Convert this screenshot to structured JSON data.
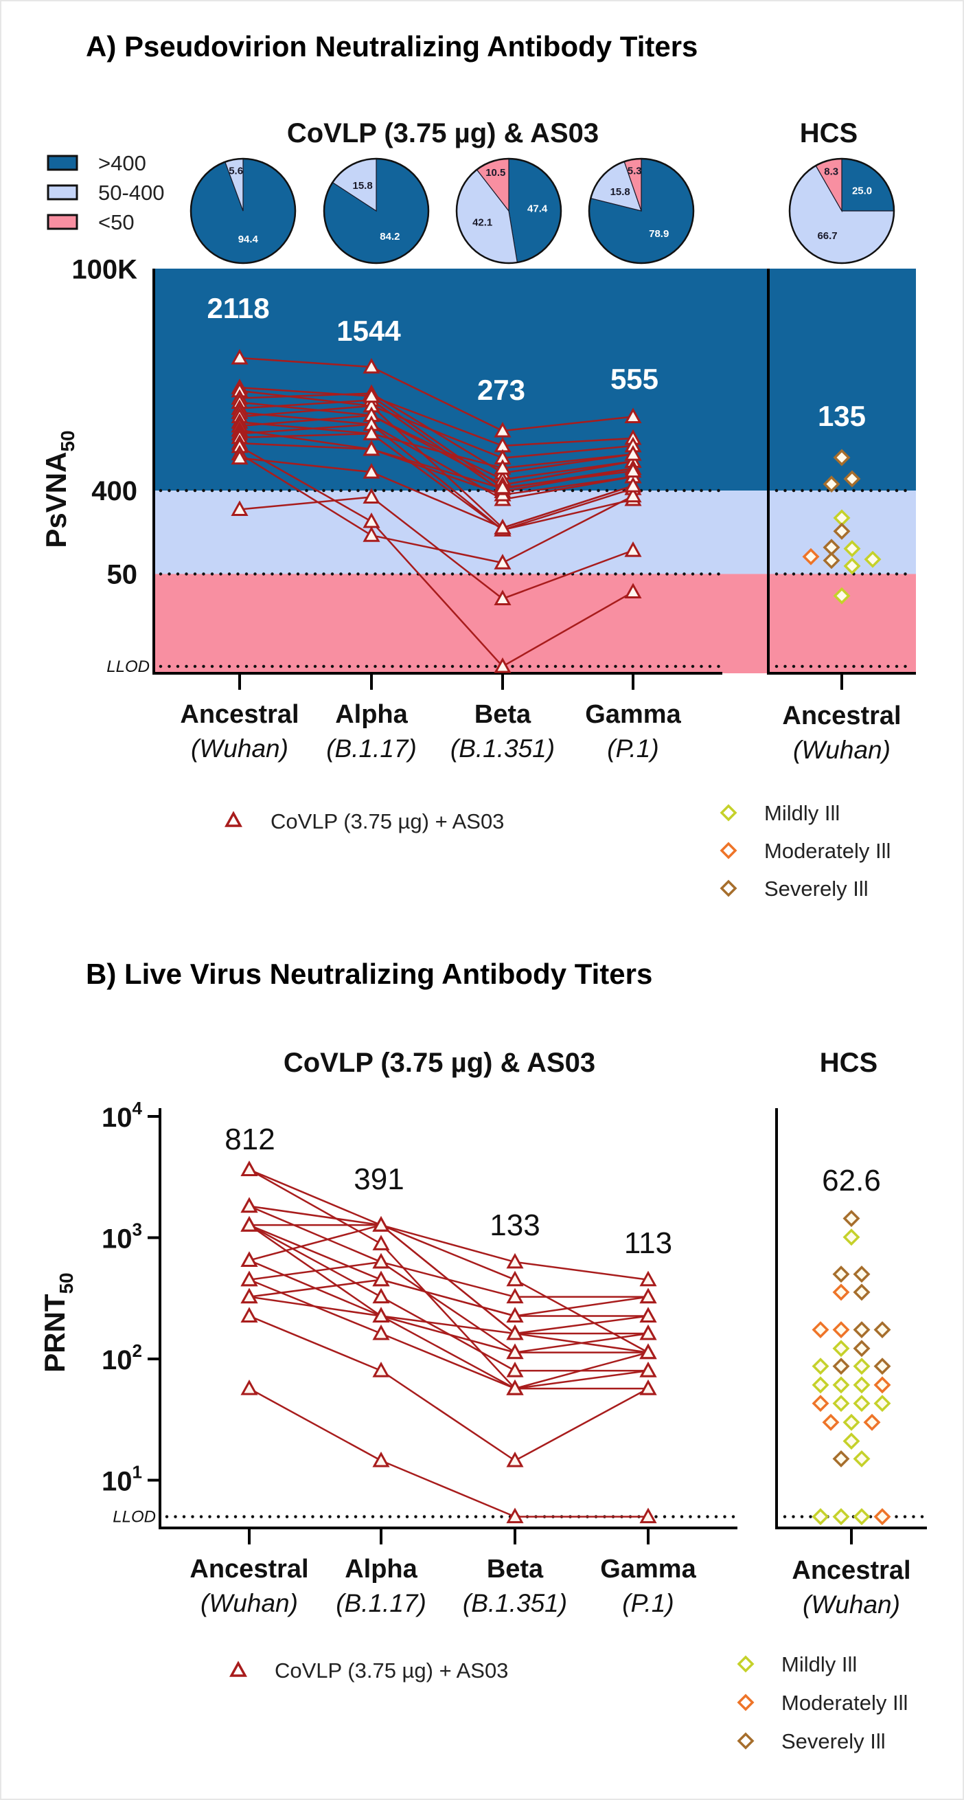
{
  "chart_data": [
    {
      "type": "line",
      "title": "A) Pseudovirion Neutralizing Antibody Titers",
      "group_titles": [
        "CoVLP (3.75 µg) & AS03",
        "HCS"
      ],
      "ylabel": "PsVNA",
      "ylabel_subscript": "50",
      "yscale": "log",
      "ylim": [
        5,
        100000
      ],
      "yticks": [
        {
          "label": "100K",
          "value": 100000
        },
        {
          "label": "400",
          "value": 400
        },
        {
          "label": "50",
          "value": 50
        },
        {
          "label": "LLOD",
          "value": 5
        }
      ],
      "grid": false,
      "categories": [
        {
          "name": "Ancestral",
          "strain": "(Wuhan)"
        },
        {
          "name": "Alpha",
          "strain": "(B.1.17)"
        },
        {
          "name": "Beta",
          "strain": "(B.1.351)"
        },
        {
          "name": "Gamma",
          "strain": "(P.1)"
        }
      ],
      "hcs_category": {
        "name": "Ancestral",
        "strain": "(Wuhan)"
      },
      "bands": [
        {
          "label": ">400",
          "color": "#12649b"
        },
        {
          "label": "50-400",
          "color": "#c5d5f8"
        },
        {
          "label": "<50",
          "color": "#f88fa1"
        }
      ],
      "pies": [
        {
          "group": "Ancestral",
          "values": [
            94.4,
            5.6,
            0
          ]
        },
        {
          "group": "Alpha",
          "values": [
            84.2,
            15.8,
            0
          ]
        },
        {
          "group": "Beta",
          "values": [
            47.4,
            42.1,
            10.5
          ]
        },
        {
          "group": "Gamma",
          "values": [
            78.9,
            15.8,
            5.3
          ]
        },
        {
          "group": "HCS",
          "values": [
            25.0,
            66.7,
            8.3
          ]
        }
      ],
      "gmt_labels": [
        "2118",
        "1544",
        "273",
        "555"
      ],
      "hcs_gmt_label": "135",
      "series_label": "CoVLP (3.75 µg) + AS03",
      "series_color": "#a81c1c",
      "subjects": [
        [
          10900,
          8700,
          1770,
          2520
        ],
        [
          5200,
          4200,
          1220,
          1470
        ],
        [
          4800,
          3300,
          900,
          1220
        ],
        [
          4000,
          4500,
          620,
          990
        ],
        [
          3600,
          2600,
          526,
          830
        ],
        [
          3100,
          3800,
          390,
          695
        ],
        [
          2800,
          2080,
          320,
          565
        ],
        [
          2520,
          3300,
          158,
          450
        ],
        [
          2200,
          1650,
          150,
          420
        ],
        [
          2000,
          2600,
          460,
          830
        ],
        [
          1800,
          1120,
          360,
          565
        ],
        [
          1650,
          2080,
          150,
          320
        ],
        [
          1500,
          1650,
          700,
          990
        ],
        [
          1300,
          1120,
          420,
          695
        ],
        [
          1200,
          185,
          5,
          32
        ],
        [
          1000,
          131,
          66,
          350
        ],
        [
          900,
          634,
          158,
          450
        ],
        [
          null,
          4200,
          430,
          650
        ],
        [
          250,
          340,
          27,
          90
        ]
      ],
      "hcs_points": [
        {
          "value": 910,
          "severity": 2
        },
        {
          "value": 470,
          "severity": 2
        },
        {
          "value": 535,
          "severity": 2
        },
        {
          "value": 202,
          "severity": 0
        },
        {
          "value": 145,
          "severity": 2
        },
        {
          "value": 97,
          "severity": 2
        },
        {
          "value": 94,
          "severity": 0
        },
        {
          "value": 77,
          "severity": 1
        },
        {
          "value": 70,
          "severity": 2
        },
        {
          "value": 61,
          "severity": 0
        },
        {
          "value": 72,
          "severity": 0
        },
        {
          "value": 29,
          "severity": 0
        }
      ],
      "severity_legend": [
        {
          "label": "Mildly Ill",
          "color": "#c5d12a"
        },
        {
          "label": "Moderately Ill",
          "color": "#ee7428"
        },
        {
          "label": "Severely Ill",
          "color": "#a66e2c"
        }
      ]
    },
    {
      "type": "line",
      "title": "B) Live Virus Neutralizing Antibody Titers",
      "group_titles": [
        "CoVLP (3.75 µg) & AS03",
        "HCS"
      ],
      "ylabel": "PRNT",
      "ylabel_subscript": "50",
      "yscale": "log",
      "ylim": [
        5,
        10000
      ],
      "yticks": [
        {
          "base": "10",
          "exp": "4",
          "value": 10000
        },
        {
          "base": "10",
          "exp": "3",
          "value": 1000
        },
        {
          "base": "10",
          "exp": "2",
          "value": 100
        },
        {
          "base": "10",
          "exp": "1",
          "value": 10
        },
        {
          "label": "LLOD",
          "value": 5
        }
      ],
      "grid": false,
      "categories": [
        {
          "name": "Ancestral",
          "strain": "(Wuhan)"
        },
        {
          "name": "Alpha",
          "strain": "(B.1.17)"
        },
        {
          "name": "Beta",
          "strain": "(B.1.351)"
        },
        {
          "name": "Gamma",
          "strain": "(P.1)"
        }
      ],
      "hcs_category": {
        "name": "Ancestral",
        "strain": "(Wuhan)"
      },
      "gmt_labels": [
        "812",
        "391",
        "133",
        "113"
      ],
      "hcs_gmt_label": "62.6",
      "series_label": "CoVLP (3.75 µg) + AS03",
      "series_color": "#a81c1c",
      "subjects": [
        [
          3640,
          1270,
          630,
          450
        ],
        [
          3640,
          890,
          57,
          113
        ],
        [
          1820,
          1270,
          162,
          226
        ],
        [
          1820,
          630,
          113,
          162
        ],
        [
          1270,
          1270,
          450,
          113
        ],
        [
          1270,
          450,
          226,
          325
        ],
        [
          1270,
          226,
          57,
          80
        ],
        [
          1270,
          325,
          80,
          80
        ],
        [
          650,
          1270,
          162,
          162
        ],
        [
          650,
          226,
          113,
          113
        ],
        [
          450,
          630,
          325,
          325
        ],
        [
          450,
          162,
          57,
          57
        ],
        [
          325,
          450,
          226,
          226
        ],
        [
          325,
          226,
          162,
          113
        ],
        [
          226,
          80,
          14.5,
          57
        ],
        [
          57,
          14.5,
          5,
          5
        ]
      ],
      "hcs_points": [
        {
          "value": 1440,
          "severity": 2
        },
        {
          "value": 1010,
          "severity": 0
        },
        {
          "value": 500,
          "severity": 2
        },
        {
          "value": 500,
          "severity": 2
        },
        {
          "value": 355,
          "severity": 1
        },
        {
          "value": 355,
          "severity": 2
        },
        {
          "value": 174,
          "severity": 1
        },
        {
          "value": 174,
          "severity": 1
        },
        {
          "value": 174,
          "severity": 2
        },
        {
          "value": 174,
          "severity": 2
        },
        {
          "value": 122,
          "severity": 0
        },
        {
          "value": 122,
          "severity": 2
        },
        {
          "value": 87,
          "severity": 0
        },
        {
          "value": 87,
          "severity": 2
        },
        {
          "value": 87,
          "severity": 0
        },
        {
          "value": 87,
          "severity": 2
        },
        {
          "value": 61,
          "severity": 0
        },
        {
          "value": 61,
          "severity": 0
        },
        {
          "value": 61,
          "severity": 0
        },
        {
          "value": 61,
          "severity": 1
        },
        {
          "value": 43,
          "severity": 1
        },
        {
          "value": 43,
          "severity": 0
        },
        {
          "value": 43,
          "severity": 0
        },
        {
          "value": 43,
          "severity": 0
        },
        {
          "value": 30,
          "severity": 1
        },
        {
          "value": 30,
          "severity": 0
        },
        {
          "value": 30,
          "severity": 1
        },
        {
          "value": 21,
          "severity": 0
        },
        {
          "value": 15,
          "severity": 2
        },
        {
          "value": 15,
          "severity": 0
        },
        {
          "value": 5,
          "severity": 0
        },
        {
          "value": 5,
          "severity": 0
        },
        {
          "value": 5,
          "severity": 0
        },
        {
          "value": 5,
          "severity": 1
        }
      ],
      "severity_legend": [
        {
          "label": "Mildly Ill",
          "color": "#c5d12a"
        },
        {
          "label": "Moderately Ill",
          "color": "#ee7428"
        },
        {
          "label": "Severely Ill",
          "color": "#a66e2c"
        }
      ]
    }
  ]
}
